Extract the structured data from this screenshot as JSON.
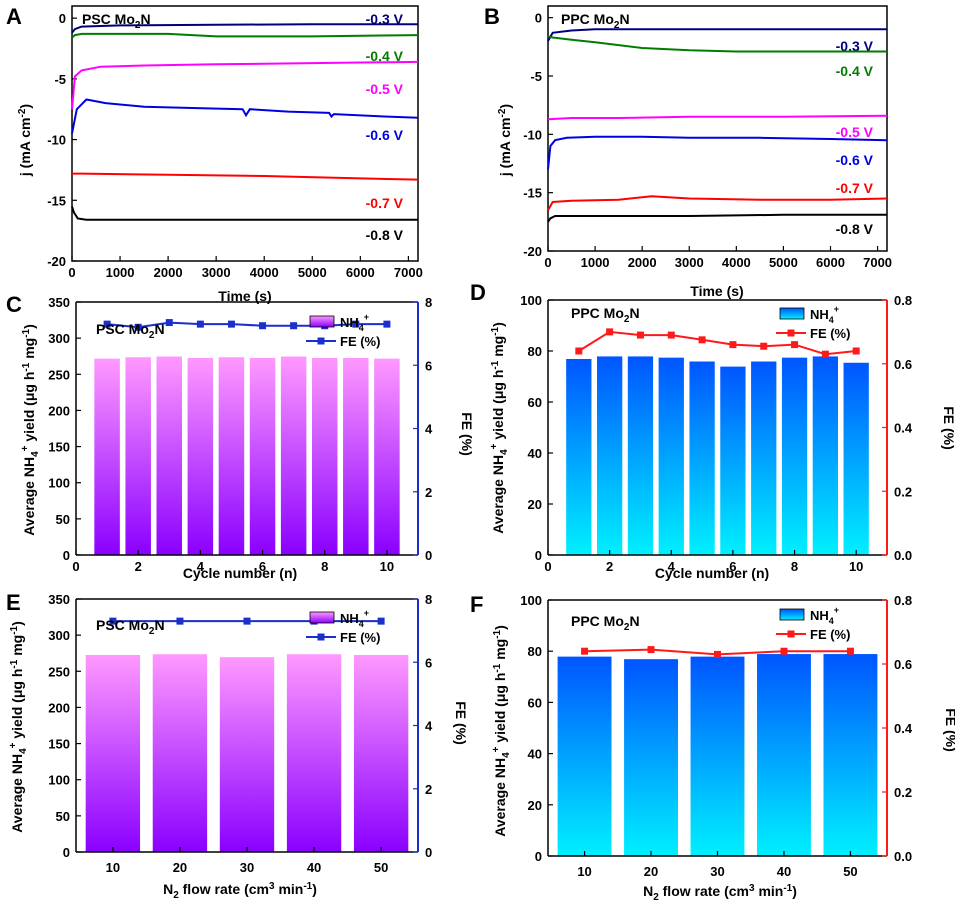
{
  "chart_data": [
    {
      "type": "line",
      "panel": "A",
      "title": "PSC Mo2N",
      "title_main": "PSC Mo",
      "title_sub": "2",
      "title_end": "N",
      "xlabel": "Time (s)",
      "ylabel": "j (mA cm-2)",
      "ylabel_main": "j (mA cm",
      "ylabel_sup": "-2",
      "ylabel_end": ")",
      "xlim": [
        0,
        7200
      ],
      "ylim": [
        -20,
        1
      ],
      "xticks": [
        "0",
        "1000",
        "2000",
        "3000",
        "4000",
        "5000",
        "6000",
        "7000"
      ],
      "yticks": [
        "0",
        "-5",
        "-10",
        "-15",
        "-20"
      ],
      "series": [
        {
          "name": "-0.3 V",
          "color": "#00007d",
          "x": [
            0,
            60,
            200,
            1000,
            3000,
            5000,
            7200
          ],
          "y": [
            -1.2,
            -0.9,
            -0.7,
            -0.6,
            -0.55,
            -0.5,
            -0.5
          ]
        },
        {
          "name": "-0.4 V",
          "color": "#007d00",
          "x": [
            0,
            60,
            200,
            1000,
            2000,
            3000,
            5000,
            7200
          ],
          "y": [
            -1.6,
            -1.4,
            -1.3,
            -1.3,
            -1.3,
            -1.5,
            -1.5,
            -1.4
          ]
        },
        {
          "name": "-0.5 V",
          "color": "#ff00ff",
          "x": [
            0,
            60,
            200,
            600,
            1500,
            3000,
            5000,
            7200
          ],
          "y": [
            -7.5,
            -4.8,
            -4.3,
            -4.0,
            -3.9,
            -3.8,
            -3.7,
            -3.6
          ]
        },
        {
          "name": "-0.6 V",
          "color": "#0000e0",
          "x": [
            0,
            100,
            300,
            700,
            1500,
            2500,
            3550,
            3620,
            3700,
            4500,
            5350,
            5400,
            5450,
            6500,
            7200
          ],
          "y": [
            -9.5,
            -7.5,
            -6.7,
            -7.0,
            -7.3,
            -7.4,
            -7.5,
            -8.0,
            -7.5,
            -7.7,
            -7.8,
            -8.1,
            -7.9,
            -8.1,
            -8.2
          ]
        },
        {
          "name": "-0.7 V",
          "color": "#ff0000",
          "x": [
            0,
            200,
            2000,
            4000,
            6000,
            7200
          ],
          "y": [
            -12.8,
            -12.8,
            -12.9,
            -13.0,
            -13.2,
            -13.3
          ]
        },
        {
          "name": "-0.8 V",
          "color": "#000000",
          "x": [
            0,
            40,
            120,
            300,
            2000,
            5000,
            7200
          ],
          "y": [
            -15.5,
            -16.0,
            -16.5,
            -16.6,
            -16.6,
            -16.6,
            -16.6
          ]
        }
      ]
    },
    {
      "type": "line",
      "panel": "B",
      "title": "PPC Mo2N",
      "title_main": "PPC Mo",
      "title_sub": "2",
      "title_end": "N",
      "xlabel": "Time (s)",
      "ylabel": "j (mA cm-2)",
      "ylabel_main": "j (mA cm",
      "ylabel_sup": "-2",
      "ylabel_end": ")",
      "xlim": [
        0,
        7200
      ],
      "ylim": [
        -20,
        1
      ],
      "xticks": [
        "0",
        "1000",
        "2000",
        "3000",
        "4000",
        "5000",
        "6000",
        "7000"
      ],
      "yticks": [
        "0",
        "-5",
        "-10",
        "-15",
        "-20"
      ],
      "series": [
        {
          "name": "-0.3 V",
          "color": "#00007d",
          "x": [
            0,
            100,
            500,
            1000,
            3000,
            5000,
            7200
          ],
          "y": [
            -2.0,
            -1.3,
            -1.1,
            -1.0,
            -1.0,
            -1.0,
            -1.0
          ]
        },
        {
          "name": "-0.4 V",
          "color": "#007d00",
          "x": [
            0,
            100,
            500,
            1000,
            2000,
            3000,
            4000,
            5000,
            7200
          ],
          "y": [
            -1.6,
            -1.7,
            -1.9,
            -2.1,
            -2.6,
            -2.8,
            -2.9,
            -2.9,
            -2.9
          ]
        },
        {
          "name": "-0.5 V",
          "color": "#ff00ff",
          "x": [
            0,
            500,
            1500,
            3000,
            5000,
            7200
          ],
          "y": [
            -8.7,
            -8.6,
            -8.6,
            -8.5,
            -8.5,
            -8.4
          ]
        },
        {
          "name": "-0.6 V",
          "color": "#0000e0",
          "x": [
            0,
            50,
            150,
            400,
            1000,
            2000,
            3000,
            4500,
            6000,
            7200
          ],
          "y": [
            -13.0,
            -11.0,
            -10.5,
            -10.3,
            -10.2,
            -10.2,
            -10.3,
            -10.3,
            -10.4,
            -10.5
          ]
        },
        {
          "name": "-0.7 V",
          "color": "#ff0000",
          "x": [
            0,
            100,
            500,
            1500,
            2200,
            3000,
            4500,
            6000,
            7200
          ],
          "y": [
            -16.5,
            -15.8,
            -15.7,
            -15.6,
            -15.3,
            -15.5,
            -15.6,
            -15.6,
            -15.5
          ]
        },
        {
          "name": "-0.8 V",
          "color": "#000000",
          "x": [
            0,
            50,
            150,
            1000,
            3000,
            5000,
            7200
          ],
          "y": [
            -17.5,
            -17.2,
            -17.0,
            -17.0,
            -17.0,
            -16.9,
            -16.9
          ]
        }
      ]
    },
    {
      "type": "bar",
      "panel": "C",
      "title": "PSC Mo2N",
      "title_main": "PSC Mo",
      "title_sub": "2",
      "title_end": "N",
      "xlabel": "Cycle number (n)",
      "ylabel": "Average NH4+ yield (μg h-1 mg-1)",
      "ylabel_left": "FE (%)",
      "y2label": "FE (%)",
      "xlim": [
        0,
        11
      ],
      "xticks": [
        "0",
        "2",
        "4",
        "6",
        "8",
        "10"
      ],
      "ylim": [
        0,
        350
      ],
      "yticks": [
        "0",
        "50",
        "100",
        "150",
        "200",
        "250",
        "300",
        "350"
      ],
      "y2lim": [
        0,
        8
      ],
      "y2ticks": [
        "0",
        "2",
        "4",
        "6",
        "8"
      ],
      "categories": [
        1,
        2,
        3,
        4,
        5,
        6,
        7,
        8,
        9,
        10
      ],
      "values": [
        272,
        274,
        275,
        273,
        274,
        273,
        275,
        273,
        273,
        272
      ],
      "line_values": [
        7.3,
        7.2,
        7.35,
        7.3,
        7.3,
        7.25,
        7.25,
        7.25,
        7.3,
        7.3
      ],
      "bar_color_top": "#ff99ff",
      "bar_color_bottom": "#8a00ff",
      "line_color": "#1a2fcc",
      "y2_axis_color": "#1a2fcc",
      "ylabel_color": "#b13cf0",
      "legend": [
        "NH4+",
        "FE (%)"
      ],
      "legend_nh": "NH",
      "legend_sub": "4",
      "legend_sup": "+",
      "legend_fe": "FE (%)"
    },
    {
      "type": "bar",
      "panel": "D",
      "title": "PPC Mo2N",
      "title_main": "PPC Mo",
      "title_sub": "2",
      "title_end": "N",
      "xlabel": "Cycle number (n)",
      "ylabel": "Average NH4+ yield (μg h-1 mg-1)",
      "y2label": "FE (%)",
      "xlim": [
        0,
        11
      ],
      "xticks": [
        "0",
        "2",
        "4",
        "6",
        "8",
        "10"
      ],
      "ylim": [
        0,
        100
      ],
      "yticks": [
        "0",
        "20",
        "40",
        "60",
        "80",
        "100"
      ],
      "y2lim": [
        0,
        0.8
      ],
      "y2ticks": [
        "0.0",
        "0.2",
        "0.4",
        "0.6",
        "0.8"
      ],
      "categories": [
        1,
        2,
        3,
        4,
        5,
        6,
        7,
        8,
        9,
        10
      ],
      "values": [
        77,
        78,
        78,
        77.5,
        76,
        74,
        76,
        77.5,
        78,
        75.5
      ],
      "line_values": [
        0.64,
        0.7,
        0.69,
        0.69,
        0.675,
        0.66,
        0.655,
        0.66,
        0.63,
        0.64
      ],
      "bar_color_top": "#0055ff",
      "bar_color_bottom": "#00f0ff",
      "line_color": "#ff1a1a",
      "y2_axis_color": "#ff1a1a",
      "ylabel_color": "#1a2fcc",
      "legend": [
        "NH4+",
        "FE (%)"
      ],
      "legend_nh": "NH",
      "legend_sub": "4",
      "legend_sup": "+",
      "legend_fe": "FE (%)"
    },
    {
      "type": "bar",
      "panel": "E",
      "title": "PSC Mo2N",
      "title_main": "PSC Mo",
      "title_sub": "2",
      "title_end": "N",
      "xlabel": "N2 flow rate (cm3 min-1)",
      "ylabel": "Average NH4+ yield (μg h-1 mg-1)",
      "y2label": "FE (%)",
      "categories": [
        "10",
        "20",
        "30",
        "40",
        "50"
      ],
      "ylim": [
        0,
        350
      ],
      "yticks": [
        "0",
        "50",
        "100",
        "150",
        "200",
        "250",
        "300",
        "350"
      ],
      "y2lim": [
        0,
        8
      ],
      "y2ticks": [
        "0",
        "2",
        "4",
        "6",
        "8"
      ],
      "values": [
        273,
        274,
        270,
        274,
        273
      ],
      "line_values": [
        7.3,
        7.3,
        7.3,
        7.3,
        7.3
      ],
      "bar_color_top": "#ff99ff",
      "bar_color_bottom": "#8a00ff",
      "line_color": "#1a2fcc",
      "y2_axis_color": "#1a2fcc",
      "ylabel_color": "#b13cf0",
      "legend": [
        "NH4+",
        "FE (%)"
      ],
      "legend_nh": "NH",
      "legend_sub": "4",
      "legend_sup": "+",
      "legend_fe": "FE (%)"
    },
    {
      "type": "bar",
      "panel": "F",
      "title": "PPC Mo2N",
      "title_main": "PPC Mo",
      "title_sub": "2",
      "title_end": "N",
      "xlabel": "N2 flow rate (cm3 min-1)",
      "ylabel": "Average NH4+ yield (μg h-1 mg-1)",
      "y2label": "FE (%)",
      "categories": [
        "10",
        "20",
        "30",
        "40",
        "50"
      ],
      "ylim": [
        0,
        100
      ],
      "yticks": [
        "0",
        "20",
        "40",
        "60",
        "80",
        "100"
      ],
      "y2lim": [
        0,
        0.8
      ],
      "y2ticks": [
        "0.0",
        "0.2",
        "0.4",
        "0.6",
        "0.8"
      ],
      "values": [
        78,
        77,
        78,
        79,
        79
      ],
      "line_values": [
        0.64,
        0.645,
        0.63,
        0.64,
        0.64
      ],
      "bar_color_top": "#0055ff",
      "bar_color_bottom": "#00f0ff",
      "line_color": "#ff1a1a",
      "y2_axis_color": "#ff1a1a",
      "ylabel_color": "#1a2fcc",
      "legend": [
        "NH4+",
        "FE (%)"
      ],
      "legend_nh": "NH",
      "legend_sub": "4",
      "legend_sup": "+",
      "legend_fe": "FE (%)"
    }
  ],
  "labels": {
    "flow_main": "N",
    "flow_sub": "2",
    "flow_rest": " flow rate (cm",
    "flow_sup": "3",
    "flow_min": " min",
    "flow_sup2": "-1",
    "flow_end": ")",
    "yield_main": "Average NH",
    "yield_sub": "4",
    "yield_sup": "+",
    "yield_rest": " yield (",
    "yield_mu": "μ",
    "yield_g": "g h",
    "yield_sup2": "-1",
    "yield_mg": " mg",
    "yield_sup3": "-1",
    "yield_end": ")"
  }
}
